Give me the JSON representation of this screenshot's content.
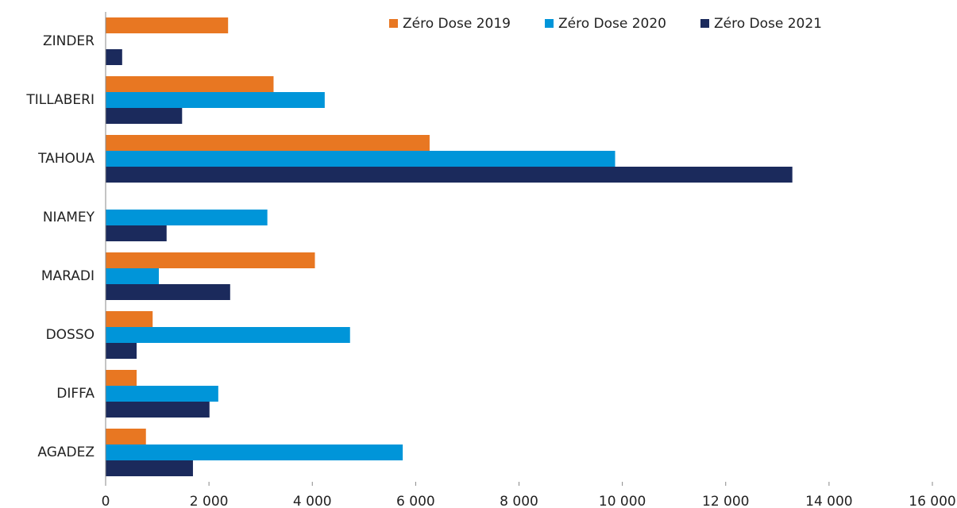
{
  "chart_data": {
    "type": "hbar",
    "categories": [
      "ZINDER",
      "TILLABERI",
      "TAHOUA",
      "NIAMEY",
      "MARADI",
      "DOSSO",
      "DIFFA",
      "AGADEZ"
    ],
    "series": [
      {
        "name": "Zéro Dose 2019",
        "color": "#e87722",
        "values": [
          2370,
          3250,
          6270,
          0,
          4050,
          910,
          600,
          780
        ]
      },
      {
        "name": "Zéro Dose 2020",
        "color": "#0095d9",
        "values": [
          0,
          4240,
          9860,
          3130,
          1030,
          4730,
          2180,
          5750
        ]
      },
      {
        "name": "Zéro Dose 2021",
        "color": "#1b2a5c",
        "values": [
          320,
          1480,
          13290,
          1180,
          2410,
          600,
          2010,
          1690
        ]
      }
    ],
    "xlim": [
      0,
      16000
    ],
    "xticks": [
      0,
      {
        "value": 2000,
        "label": "2 000"
      },
      {
        "value": 4000,
        "label": "4 000"
      },
      {
        "value": 6000,
        "label": "6 000"
      },
      {
        "value": 8000,
        "label": "8 000"
      },
      {
        "value": 10000,
        "label": "10 000"
      },
      {
        "value": 12000,
        "label": "12 000"
      },
      {
        "value": 14000,
        "label": "14 000"
      },
      {
        "value": 16000,
        "label": "16 000"
      }
    ],
    "legend": "top-right"
  }
}
